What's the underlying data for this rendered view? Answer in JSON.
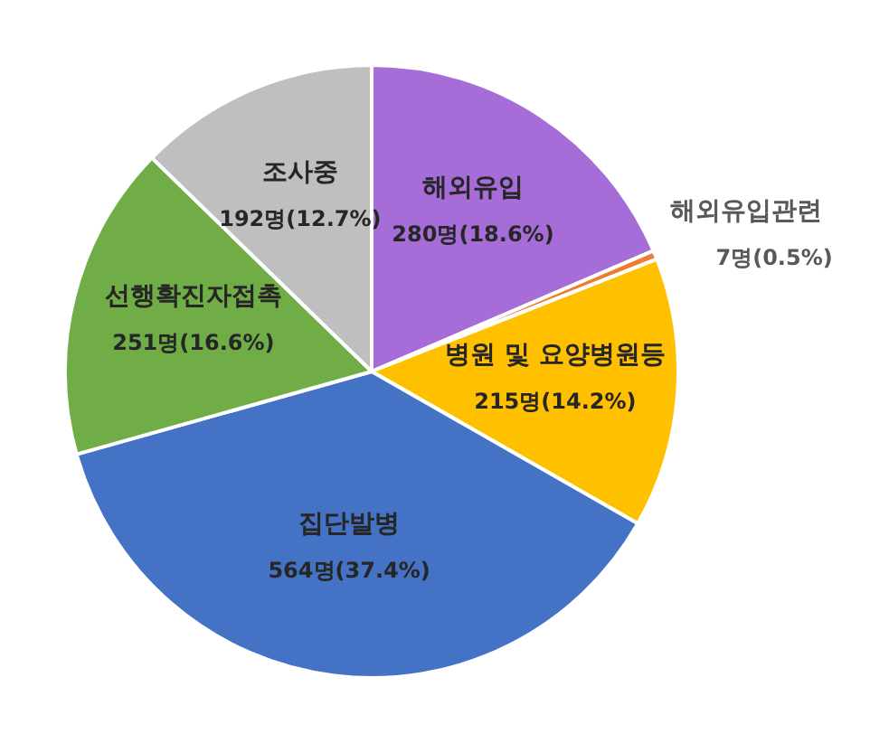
{
  "chart_data": {
    "type": "pie",
    "categories": [
      "해외유입",
      "해외유입관련",
      "병원 및 요양병원등",
      "집단발병",
      "선행확진자접촉",
      "조사중"
    ],
    "values": [
      280,
      7,
      215,
      564,
      251,
      192
    ],
    "colors": [
      "#a66dd8",
      "#ed7d31",
      "#ffc000",
      "#4472c4",
      "#70ad47",
      "#bfbfbf"
    ],
    "value_labels": [
      "280명(18.6%)",
      "7명(0.5%)",
      "215명(14.2%)",
      "564명(37.4%)",
      "251명(16.6%)",
      "192명(12.7%)"
    ]
  }
}
